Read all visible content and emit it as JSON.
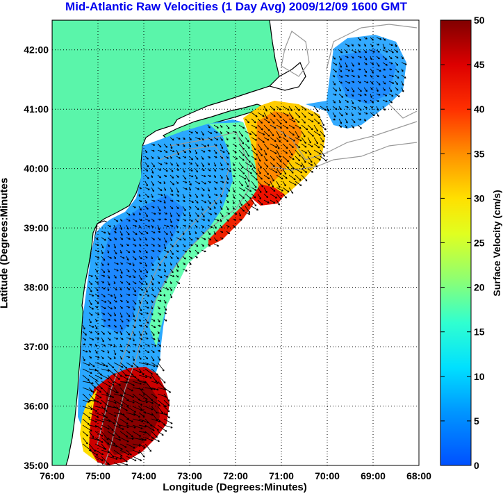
{
  "title": "Mid-Atlantic Raw Velocities (1 Day Avg) 2009/12/09 1600 GMT",
  "axes": {
    "xlabel": "Longitude (Degrees:Minutes)",
    "ylabel": "Latitude (Degrees:Minutes",
    "x_ticks": [
      "76:00",
      "75:00",
      "74:00",
      "73:00",
      "72:00",
      "71:00",
      "70:00",
      "69:00",
      "68:00"
    ],
    "y_ticks": [
      "42:00",
      "41:00",
      "40:00",
      "39:00",
      "38:00",
      "37:00",
      "36:00",
      "35:00"
    ],
    "x_range": [
      -76,
      -68
    ],
    "y_range": [
      35,
      42.5
    ],
    "grid": "dotted"
  },
  "colorbar": {
    "label": "Surface Velocity (cm/s)",
    "ticks": [
      "0",
      "5",
      "10",
      "15",
      "20",
      "25",
      "30",
      "35",
      "40",
      "45",
      "50"
    ],
    "range": [
      0,
      50
    ],
    "colormap": "jet",
    "placement": "right"
  },
  "colors": {
    "land": "#5af5aa",
    "title": "#0000ee",
    "coastline": "#000000",
    "bathymetry": "#999999"
  }
}
